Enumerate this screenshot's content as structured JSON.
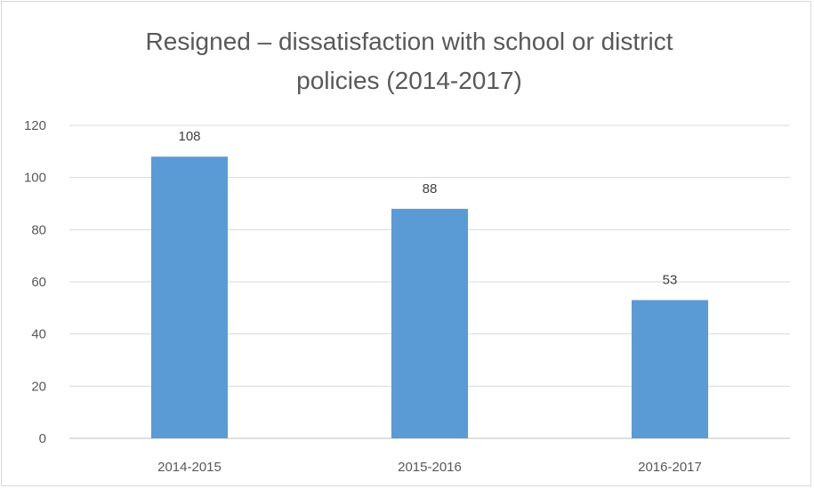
{
  "chart_data": {
    "type": "bar",
    "title_lines": [
      "Resigned – dissatisfaction with school or district",
      "policies (2014-2017)"
    ],
    "categories": [
      "2014-2015",
      "2015-2016",
      "2016-2017"
    ],
    "values": [
      108,
      88,
      53
    ],
    "data_labels": [
      "108",
      "88",
      "53"
    ],
    "ylim": [
      0,
      120
    ],
    "y_ticks": [
      0,
      20,
      40,
      60,
      80,
      100,
      120
    ],
    "grid": true,
    "legend": "none",
    "colors": {
      "bar": "#5b9bd5",
      "grid": "#d9d9d9",
      "axis": "#bfbfbf",
      "text": "#595959"
    }
  }
}
